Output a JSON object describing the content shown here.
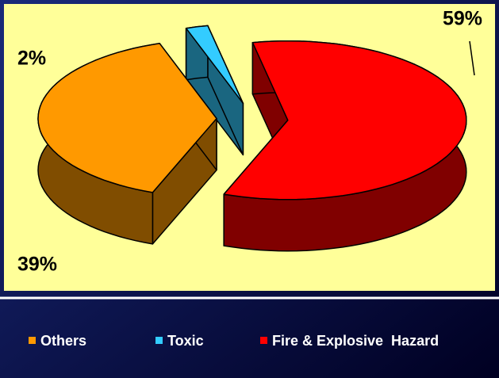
{
  "chart_data": {
    "type": "pie",
    "categories": [
      "Others",
      "Toxic",
      "Fire & Explosive  Hazard"
    ],
    "values": [
      39,
      2,
      59
    ],
    "value_labels": [
      "39%",
      "2%",
      "59%"
    ],
    "colors": [
      "#ff9900",
      "#33ccff",
      "#ff0000"
    ],
    "legend": "bottom"
  }
}
